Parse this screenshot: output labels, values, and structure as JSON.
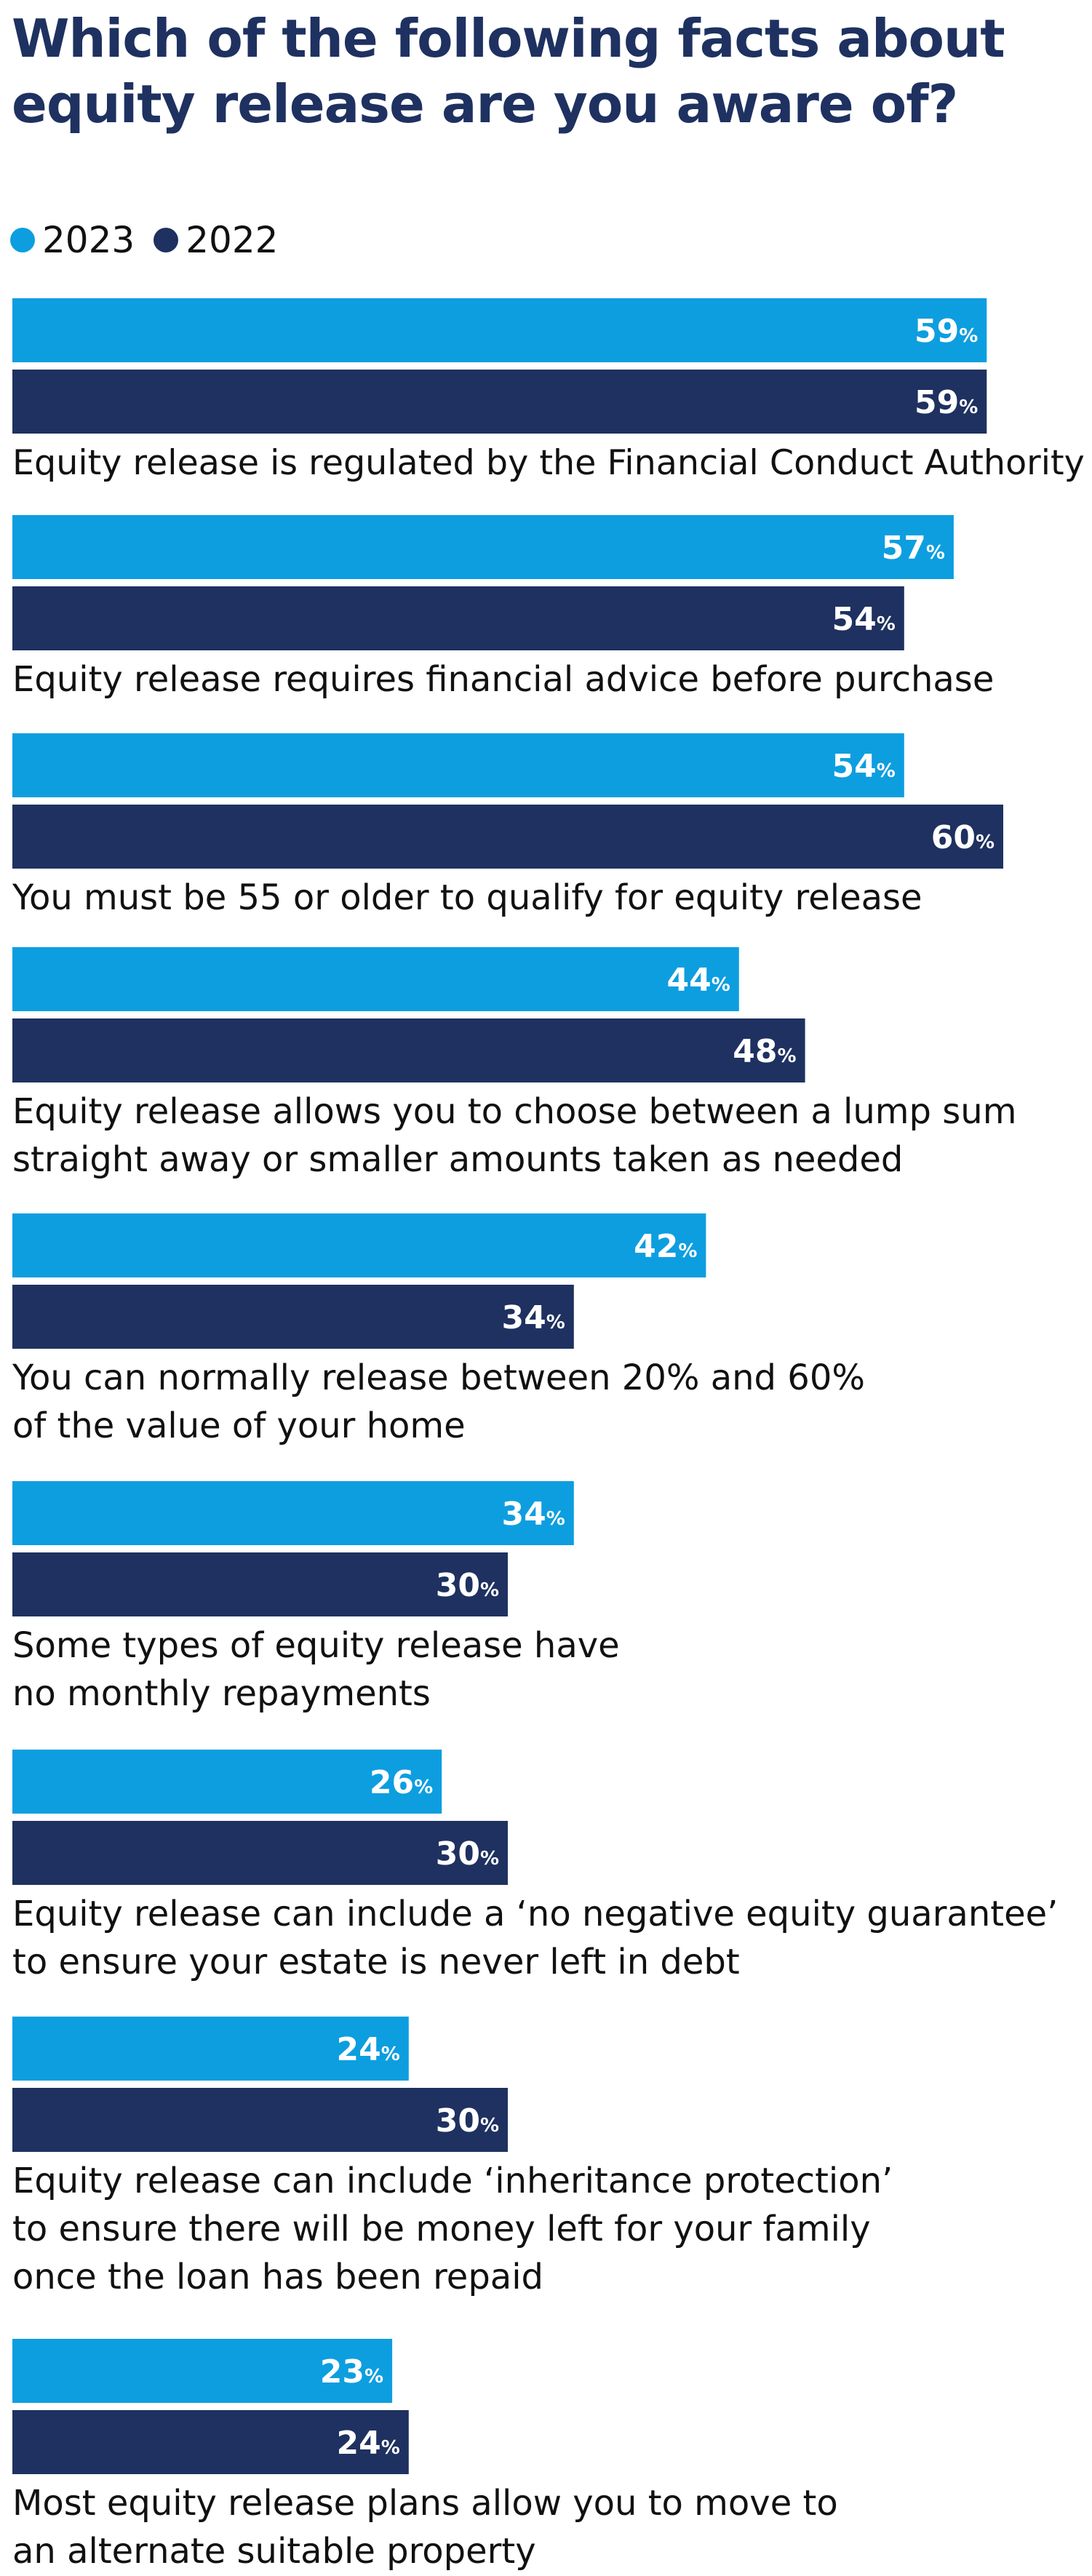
{
  "chart_data": {
    "type": "bar",
    "orientation": "horizontal",
    "title": "Which of the following facts about equity release are you aware of?",
    "legend_position": "top-left",
    "value_suffix": "%",
    "xlim": [
      0,
      100
    ],
    "grid": false,
    "colors": {
      "2023": "#0d9ee0",
      "2022": "#1e3160"
    },
    "categories": [
      "Equity release is regulated by the Financial Conduct Authority",
      "Equity release requires financial advice before purchase",
      "You must be 55 or older to qualify for equity release",
      "Equity release allows you to choose between a lump sum\nstraight away or smaller amounts taken as needed",
      "You can normally release between 20% and 60%\nof the value of your home",
      "Some types of equity release have\nno monthly repayments",
      "Equity release can include a ‘no negative equity guarantee’\nto ensure your estate is never left in debt",
      "Equity release can include ‘inheritance protection’\nto ensure there will be money left for your family\nonce the loan has been repaid",
      "Most equity release plans allow you to move to\nan alternate suitable property"
    ],
    "series": [
      {
        "name": "2023",
        "color": "#0d9ee0",
        "values": [
          59,
          57,
          54,
          44,
          42,
          34,
          26,
          24,
          23
        ]
      },
      {
        "name": "2022",
        "color": "#1e3160",
        "values": [
          59,
          54,
          60,
          48,
          34,
          30,
          30,
          30,
          24
        ]
      }
    ]
  }
}
